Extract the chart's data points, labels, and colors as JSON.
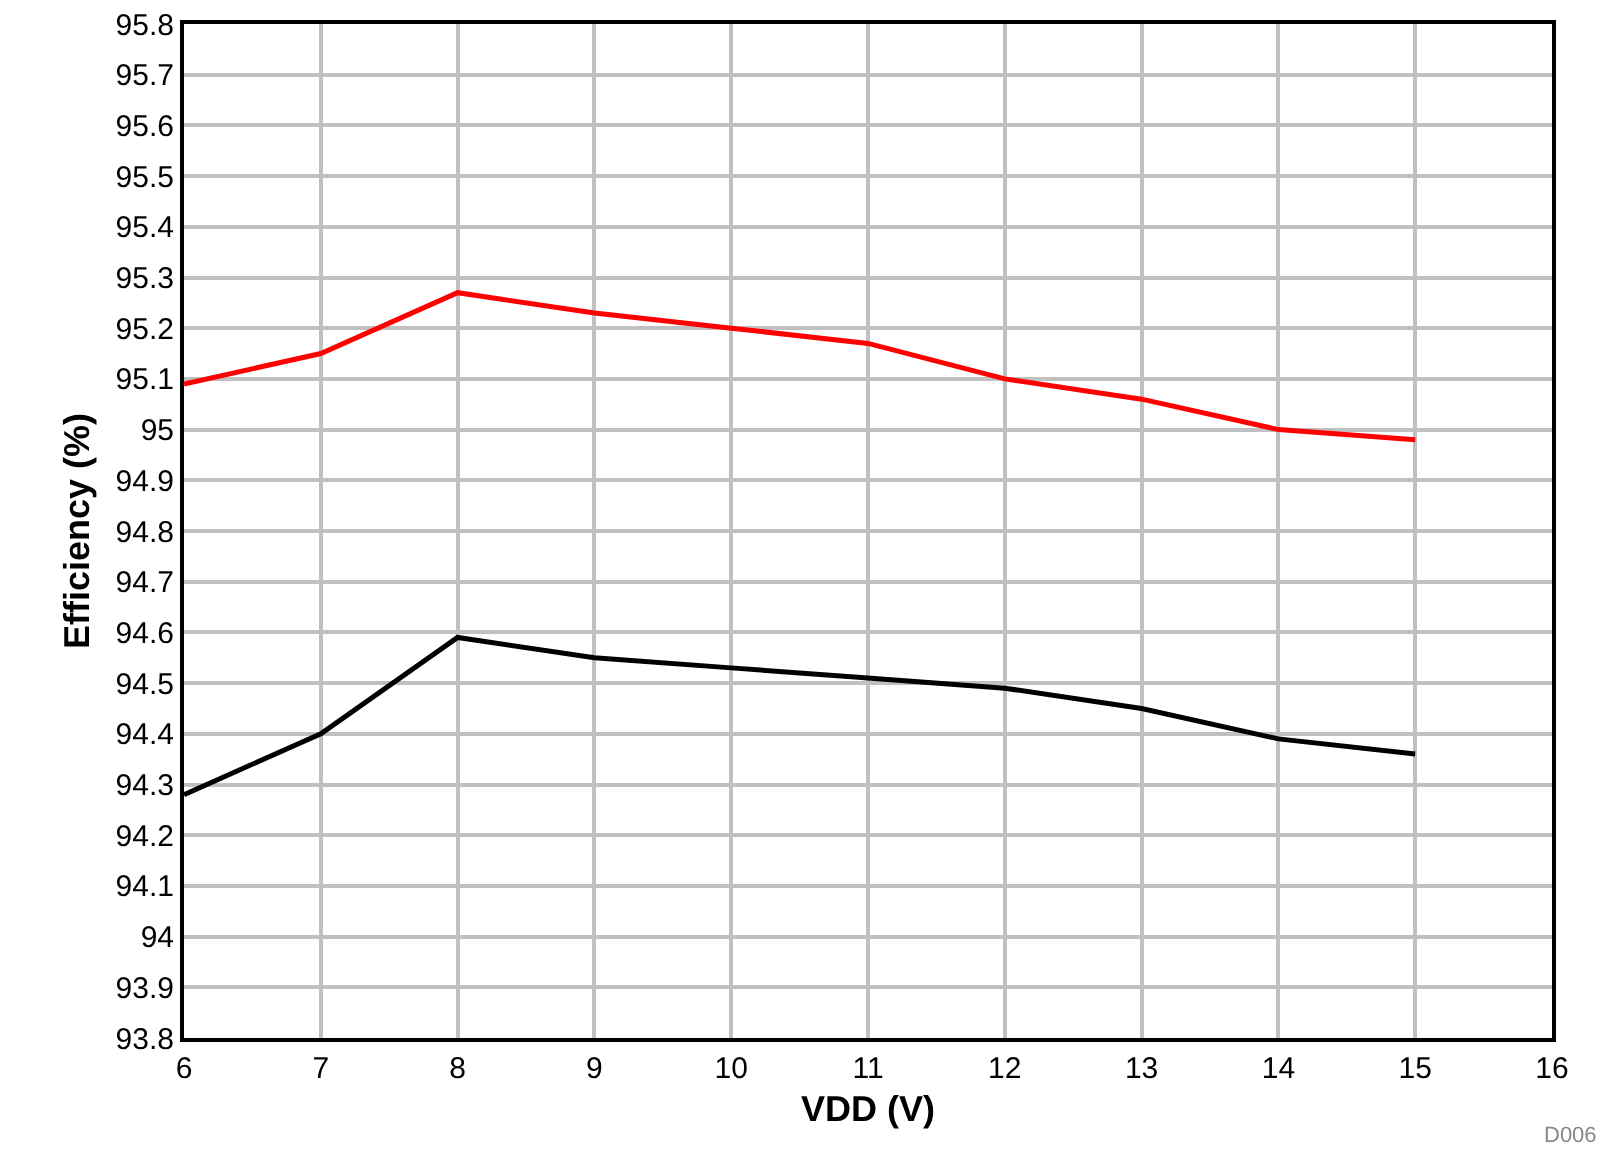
{
  "chart_data": {
    "type": "line",
    "xlabel": "VDD (V)",
    "ylabel": "Efficiency (%)",
    "x": [
      6,
      7,
      8,
      9,
      10,
      11,
      12,
      13,
      14,
      15
    ],
    "series": [
      {
        "color": "#ff0000",
        "values": [
          95.09,
          95.15,
          95.27,
          95.23,
          95.2,
          95.17,
          95.1,
          95.06,
          95.0,
          94.98
        ]
      },
      {
        "color": "#000000",
        "values": [
          94.28,
          94.4,
          94.59,
          94.55,
          94.53,
          94.51,
          94.49,
          94.45,
          94.39,
          94.36
        ]
      }
    ],
    "xlim": [
      6,
      16
    ],
    "xticks": [
      6,
      7,
      8,
      9,
      10,
      11,
      12,
      13,
      14,
      15,
      16
    ],
    "ylim": [
      93.8,
      95.8
    ],
    "yticks": [
      93.8,
      93.9,
      94,
      94.1,
      94.2,
      94.3,
      94.4,
      94.5,
      94.6,
      94.7,
      94.8,
      94.9,
      95,
      95.1,
      95.2,
      95.3,
      95.4,
      95.5,
      95.6,
      95.7,
      95.8
    ],
    "grid": true,
    "marker": "none",
    "line_style": "solid",
    "annotations": [
      "D006"
    ]
  }
}
